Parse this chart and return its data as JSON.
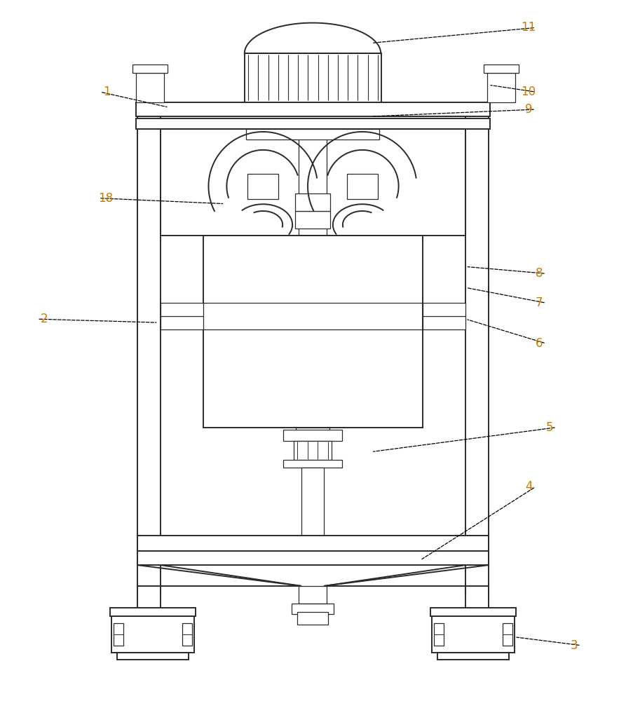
{
  "bg_color": "#ffffff",
  "line_color": "#2a2a2a",
  "label_color": "#c87d00",
  "lw": 1.4,
  "lw_thin": 0.9,
  "fig_width": 8.93,
  "fig_height": 10.0
}
